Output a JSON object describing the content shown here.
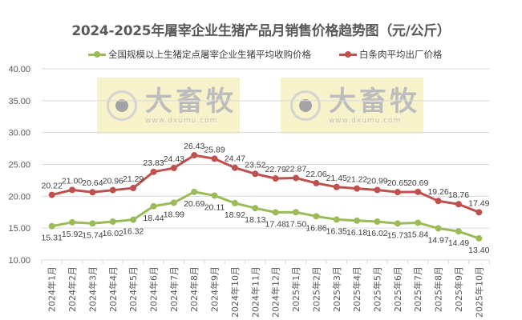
{
  "chart_data": {
    "type": "line",
    "title": "2024-2025年屠宰企业生猪产品月销售价格趋势图（元/公斤）",
    "xlabel": "",
    "ylabel": "",
    "ylim": [
      10,
      40
    ],
    "yticks": [
      "10.00",
      "15.00",
      "20.00",
      "25.00",
      "30.00",
      "35.00",
      "40.00"
    ],
    "grid": true,
    "legend_position": "top",
    "categories": [
      "2024年1月",
      "2024年2月",
      "2024年3月",
      "2024年4月",
      "2024年5月",
      "2024年6月",
      "2024年7月",
      "2024年8月",
      "2024年9月",
      "2024年10月",
      "2024年11月",
      "2024年12月",
      "2025年1月",
      "2025年2月",
      "2025年3月",
      "2025年4月",
      "2025年5月",
      "2025年6月",
      "2025年7月",
      "2025年8月",
      "2025年9月",
      "2025年10月"
    ],
    "series": [
      {
        "name": "全国规模以上生猪定点屠宰企业生猪平均收购价格",
        "color": "#9bbb59",
        "values": [
          15.31,
          15.92,
          15.74,
          16.02,
          16.32,
          18.44,
          18.99,
          20.69,
          20.11,
          18.92,
          18.13,
          17.48,
          17.5,
          16.86,
          16.35,
          16.18,
          16.02,
          15.73,
          15.84,
          14.97,
          14.49,
          13.4
        ]
      },
      {
        "name": "白条肉平均出厂价格",
        "color": "#c0504d",
        "values": [
          20.22,
          21.0,
          20.64,
          20.96,
          21.29,
          23.83,
          24.43,
          26.43,
          25.89,
          24.47,
          23.52,
          22.79,
          22.87,
          22.06,
          21.45,
          21.22,
          20.99,
          20.65,
          20.69,
          19.26,
          18.76,
          17.49
        ]
      }
    ]
  },
  "watermark": {
    "brand": "大畜牧",
    "url": "www.dxumu.com"
  }
}
